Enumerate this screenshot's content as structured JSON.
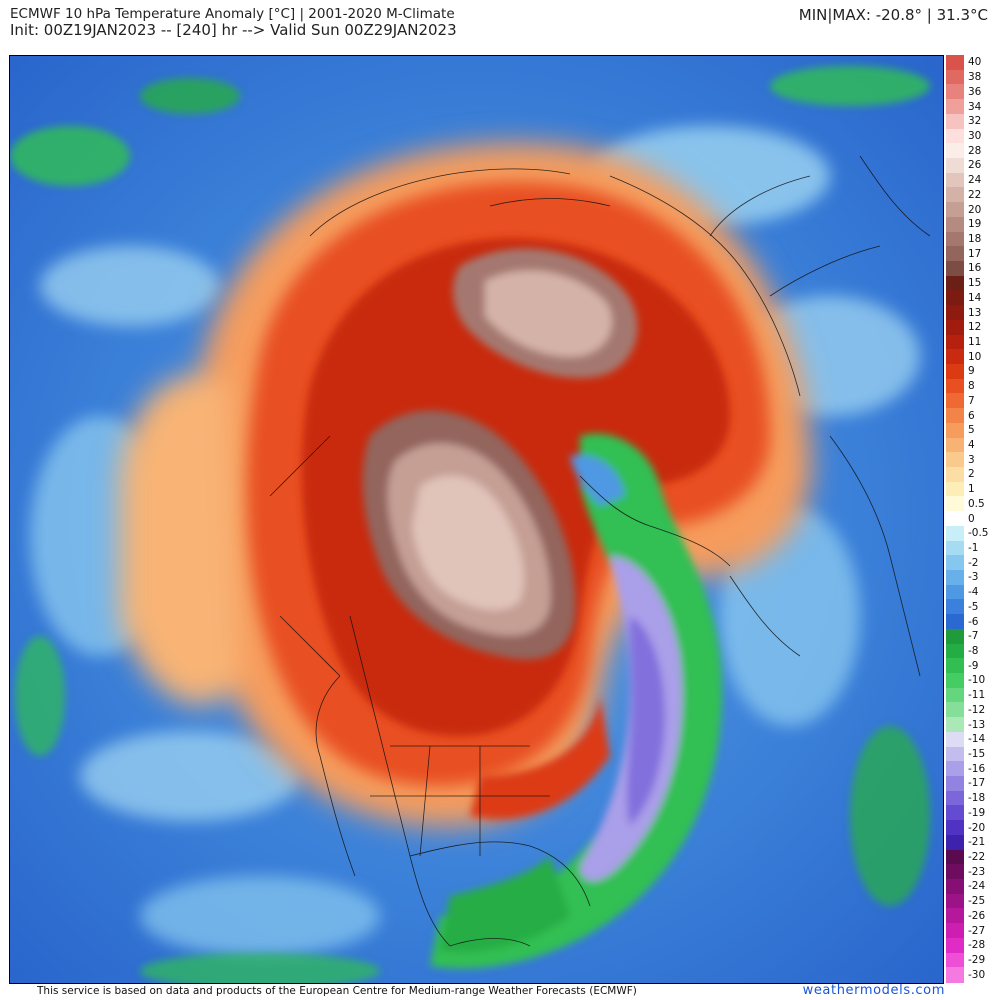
{
  "header": {
    "title_line1": "ECMWF 10 hPa Temperature Anomaly [°C] | 2001-2020 M-Climate",
    "title_line2": "Init: 00Z19JAN2023 -- [240] hr --> Valid Sun 00Z29JAN2023",
    "minmax": "MIN|MAX: -20.8° | 31.3°C"
  },
  "legend": {
    "levels": [
      {
        "label": "40",
        "color": "#d9534a"
      },
      {
        "label": "38",
        "color": "#e06a62"
      },
      {
        "label": "36",
        "color": "#e8827c"
      },
      {
        "label": "34",
        "color": "#f0a09b"
      },
      {
        "label": "32",
        "color": "#f7c3c0"
      },
      {
        "label": "30",
        "color": "#fde0dd"
      },
      {
        "label": "28",
        "color": "#fbeee9"
      },
      {
        "label": "26",
        "color": "#efdcd4"
      },
      {
        "label": "24",
        "color": "#e2c6bc"
      },
      {
        "label": "22",
        "color": "#d4b2a7"
      },
      {
        "label": "20",
        "color": "#c59f94"
      },
      {
        "label": "19",
        "color": "#b58b81"
      },
      {
        "label": "18",
        "color": "#a4786f"
      },
      {
        "label": "17",
        "color": "#93655d"
      },
      {
        "label": "16",
        "color": "#7d4c45"
      },
      {
        "label": "15",
        "color": "#6a1f17"
      },
      {
        "label": "14",
        "color": "#7c1b12"
      },
      {
        "label": "13",
        "color": "#8e1a10"
      },
      {
        "label": "12",
        "color": "#a21b0f"
      },
      {
        "label": "11",
        "color": "#b5200f"
      },
      {
        "label": "10",
        "color": "#c92a10"
      },
      {
        "label": "9",
        "color": "#dc3a12"
      },
      {
        "label": "8",
        "color": "#e85022"
      },
      {
        "label": "7",
        "color": "#ef6a33"
      },
      {
        "label": "6",
        "color": "#f38448"
      },
      {
        "label": "5",
        "color": "#f69c5d"
      },
      {
        "label": "4",
        "color": "#f8b374"
      },
      {
        "label": "3",
        "color": "#fac98c"
      },
      {
        "label": "2",
        "color": "#fcdda3"
      },
      {
        "label": "1",
        "color": "#fdeeb8"
      },
      {
        "label": "0.5",
        "color": "#fffbd8"
      },
      {
        "label": "0",
        "color": "#ffffff"
      },
      {
        "label": "-0.5",
        "color": "#c8eef8"
      },
      {
        "label": "-1",
        "color": "#a5dcf4"
      },
      {
        "label": "-2",
        "color": "#86c7ef"
      },
      {
        "label": "-3",
        "color": "#69b0ea"
      },
      {
        "label": "-4",
        "color": "#4f98e3"
      },
      {
        "label": "-5",
        "color": "#3b80dc"
      },
      {
        "label": "-6",
        "color": "#2a68d2"
      },
      {
        "label": "-7",
        "color": "#1f9b3b"
      },
      {
        "label": "-8",
        "color": "#25ad45"
      },
      {
        "label": "-9",
        "color": "#31bf52"
      },
      {
        "label": "-10",
        "color": "#45cc63"
      },
      {
        "label": "-11",
        "color": "#64d67d"
      },
      {
        "label": "-12",
        "color": "#86df99"
      },
      {
        "label": "-13",
        "color": "#abe8b8"
      },
      {
        "label": "-14",
        "color": "#dcdcf4"
      },
      {
        "label": "-15",
        "color": "#c3bdef"
      },
      {
        "label": "-16",
        "color": "#aa9fe9"
      },
      {
        "label": "-17",
        "color": "#9282e2"
      },
      {
        "label": "-18",
        "color": "#7b66da"
      },
      {
        "label": "-19",
        "color": "#654bd1"
      },
      {
        "label": "-20",
        "color": "#5033c4"
      },
      {
        "label": "-21",
        "color": "#3c22ad"
      },
      {
        "label": "-22",
        "color": "#5a0a4e"
      },
      {
        "label": "-23",
        "color": "#6e0c60"
      },
      {
        "label": "-24",
        "color": "#850f74"
      },
      {
        "label": "-25",
        "color": "#9c1388"
      },
      {
        "label": "-26",
        "color": "#b5189c"
      },
      {
        "label": "-27",
        "color": "#cc1fb1"
      },
      {
        "label": "-28",
        "color": "#e12bc6"
      },
      {
        "label": "-29",
        "color": "#ef4fd6"
      },
      {
        "label": "-30",
        "color": "#f47ae2"
      }
    ]
  },
  "footer": {
    "attribution": "This service is based on data and products of the European Centre for Medium-range Weather Forecasts (ECMWF)",
    "brand": "weathermodels.com"
  }
}
